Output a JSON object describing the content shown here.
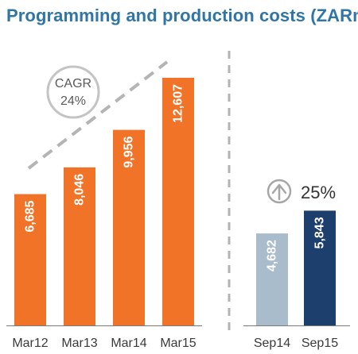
{
  "chart_data": [
    {
      "type": "bar",
      "title": "Programming and production costs (ZARm)",
      "categories": [
        "Mar12",
        "Mar13",
        "Mar14",
        "Mar15"
      ],
      "values": [
        6685,
        8046,
        9956,
        12607
      ],
      "data_labels": [
        "6,685",
        "8,046",
        "9,956",
        "12,607"
      ],
      "colors": [
        "#f07327",
        "#f07327",
        "#f07327",
        "#f07327"
      ],
      "annotation": {
        "line1": "CAGR",
        "line2": "24%"
      },
      "xlabel": "",
      "ylabel": "",
      "ylim": [
        0,
        13000
      ],
      "grid": false
    },
    {
      "type": "bar",
      "categories": [
        "Sep14",
        "Sep15"
      ],
      "values": [
        4682,
        5843
      ],
      "data_labels": [
        "4,682",
        "5,843"
      ],
      "colors": [
        "#a8bccb",
        "#1c3f6e"
      ],
      "annotation": {
        "text": "25%",
        "icon": "up-arrow-circle-icon"
      },
      "xlabel": "",
      "ylabel": "",
      "ylim": [
        0,
        13000
      ],
      "grid": false
    }
  ],
  "colors": {
    "title": "#2f76a6",
    "annual_bar": "#f07327",
    "sep14_bar": "#a8bccb",
    "sep15_bar": "#1c3f6e",
    "dashed": "#b4b4b4",
    "axis": "#7a7a7a"
  }
}
